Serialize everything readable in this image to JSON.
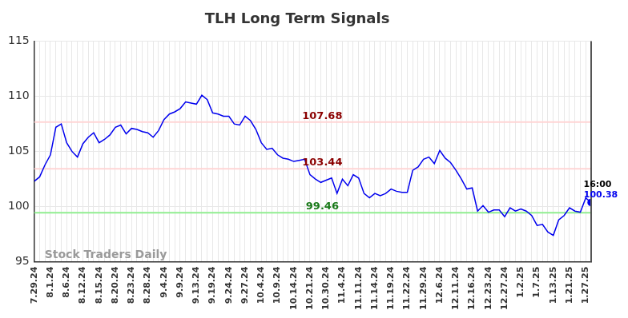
{
  "chart_data": {
    "type": "line",
    "title": "TLH Long Term Signals",
    "categories": [
      "7.29.24",
      null,
      null,
      "8.1.24",
      null,
      null,
      "8.6.24",
      null,
      null,
      "8.12.24",
      null,
      null,
      "8.15.24",
      null,
      null,
      "8.20.24",
      null,
      null,
      "8.23.24",
      null,
      null,
      "8.28.24",
      null,
      null,
      "9.4.24",
      null,
      null,
      "9.9.24",
      null,
      null,
      "9.13.24",
      null,
      null,
      "9.19.24",
      null,
      null,
      "9.24.24",
      null,
      null,
      "9.27.24",
      null,
      null,
      "10.4.24",
      null,
      null,
      "10.9.24",
      null,
      null,
      "10.14.24",
      null,
      null,
      "10.21.24",
      null,
      null,
      "10.30.24",
      null,
      null,
      "11.4.24",
      null,
      null,
      "11.11.24",
      null,
      null,
      "11.14.24",
      null,
      null,
      "11.19.24",
      null,
      null,
      "11.22.24",
      null,
      null,
      "11.29.24",
      null,
      null,
      "12.6.24",
      null,
      null,
      "12.11.24",
      null,
      null,
      "12.16.24",
      null,
      null,
      "12.23.24",
      null,
      null,
      "12.27.24",
      null,
      null,
      "1.2.25",
      null,
      null,
      "1.7.25",
      null,
      null,
      "1.13.25",
      null,
      null,
      "1.21.25",
      null,
      null,
      "1.27.25",
      null
    ],
    "values": [
      102.3,
      102.7,
      103.8,
      104.7,
      107.2,
      107.5,
      105.8,
      105.0,
      104.5,
      105.7,
      106.3,
      106.7,
      105.8,
      106.1,
      106.5,
      107.2,
      107.4,
      106.6,
      107.1,
      107.0,
      106.8,
      106.7,
      106.3,
      106.9,
      107.9,
      108.4,
      108.6,
      108.9,
      109.5,
      109.4,
      109.3,
      110.1,
      109.7,
      108.5,
      108.4,
      108.2,
      108.2,
      107.5,
      107.4,
      108.2,
      107.8,
      107.0,
      105.8,
      105.2,
      105.3,
      104.7,
      104.4,
      104.3,
      104.1,
      104.2,
      104.3,
      102.9,
      102.5,
      102.2,
      102.4,
      102.6,
      101.2,
      102.5,
      101.9,
      102.9,
      102.6,
      101.2,
      100.8,
      101.2,
      101.0,
      101.2,
      101.6,
      101.4,
      101.3,
      101.3,
      103.3,
      103.6,
      104.3,
      104.5,
      103.9,
      105.1,
      104.4,
      104.0,
      103.3,
      102.5,
      101.6,
      101.7,
      99.6,
      100.1,
      99.5,
      99.7,
      99.7,
      99.1,
      99.9,
      99.6,
      99.8,
      99.6,
      99.2,
      98.3,
      98.4,
      97.7,
      97.4,
      98.8,
      99.2,
      99.9,
      99.6,
      99.5,
      100.8,
      100.38
    ],
    "color": "#0000ee",
    "ylim": [
      95,
      115
    ],
    "yticks": [
      95,
      100,
      105,
      110,
      115
    ],
    "grid": true,
    "levels": [
      {
        "value": 107.68,
        "color": "#8b0000"
      },
      {
        "value": 103.44,
        "color": "#8b0000"
      },
      {
        "value": 99.46,
        "color": "#1a7a1a"
      }
    ],
    "watermark": "Stock Traders Daily",
    "end_label": {
      "time": "16:00",
      "value": 100.38
    }
  }
}
